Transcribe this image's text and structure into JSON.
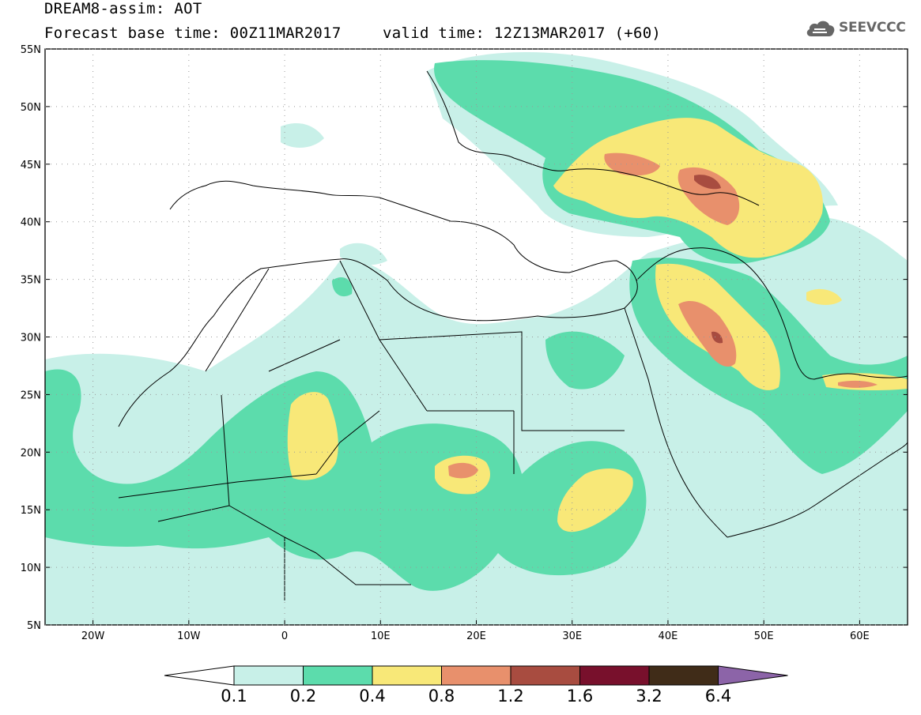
{
  "header": {
    "title_line1": "DREAM8-assim: AOT",
    "base_time": "Forecast base time: 00Z11MAR2017",
    "valid_time": "valid time: 12Z13MAR2017 (+60)",
    "logo_text": "SEEVCCC"
  },
  "map": {
    "lon_range": [
      -25,
      65
    ],
    "lat_range": [
      5,
      55
    ],
    "lat_labels": [
      "55N",
      "50N",
      "45N",
      "40N",
      "35N",
      "30N",
      "25N",
      "20N",
      "15N",
      "10N",
      "5N"
    ],
    "lon_labels": [
      "20W",
      "10W",
      "0",
      "10E",
      "20E",
      "30E",
      "40E",
      "50E",
      "60E"
    ]
  },
  "colorbar": {
    "thresholds": [
      "0.1",
      "0.2",
      "0.4",
      "0.8",
      "1.2",
      "1.6",
      "3.2",
      "6.4"
    ],
    "colors": [
      "#ffffff",
      "#c8f0e8",
      "#5cdcac",
      "#f8e878",
      "#e8906c",
      "#a84c40",
      "#78102c",
      "#402c18",
      "#8c64a8"
    ]
  }
}
